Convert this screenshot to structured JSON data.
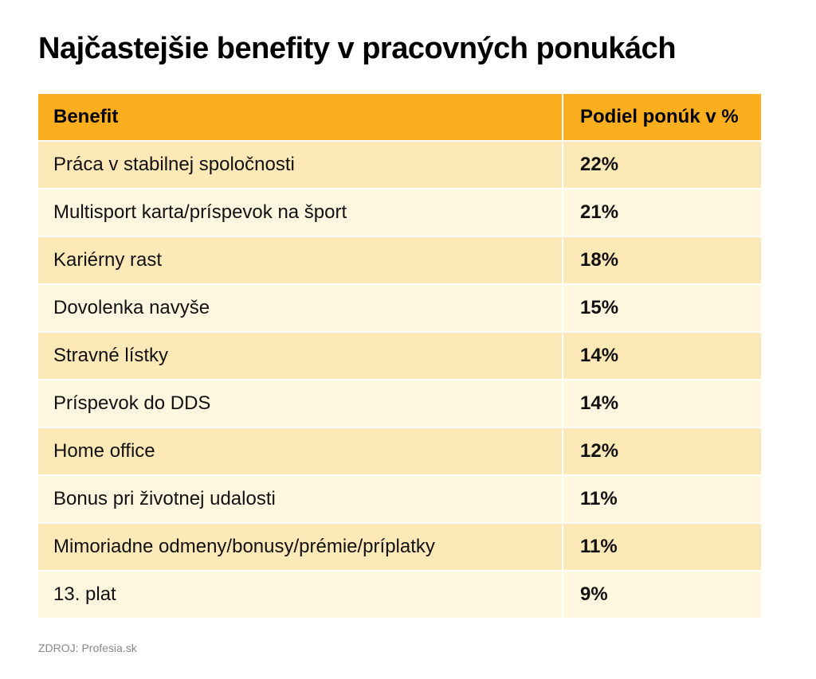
{
  "title": "Najčastejšie benefity v pracovných ponukách",
  "source": "ZDROJ: Profesia.sk",
  "colors": {
    "header": "#fbaf1e",
    "row_odd": "#fde8b8",
    "row_even": "#fff6e0"
  },
  "chart_data": {
    "type": "table",
    "title": "Najčastejšie benefity v pracovných ponukách",
    "columns": [
      "Benefit",
      "Podiel ponúk v %"
    ],
    "rows": [
      {
        "benefit": "Práca v stabilnej spoločnosti",
        "share": "22%"
      },
      {
        "benefit": "Multisport karta/príspevok na šport",
        "share": "21%"
      },
      {
        "benefit": "Kariérny rast",
        "share": "18%"
      },
      {
        "benefit": "Dovolenka navyše",
        "share": "15%"
      },
      {
        "benefit": "Stravné lístky",
        "share": "14%"
      },
      {
        "benefit": "Príspevok do DDS",
        "share": "14%"
      },
      {
        "benefit": "Home office",
        "share": "12%"
      },
      {
        "benefit": "Bonus pri životnej udalosti",
        "share": "11%"
      },
      {
        "benefit": "Mimoriadne odmeny/bonusy/prémie/príplatky",
        "share": "11%"
      },
      {
        "benefit": "13. plat",
        "share": "9%"
      }
    ]
  }
}
